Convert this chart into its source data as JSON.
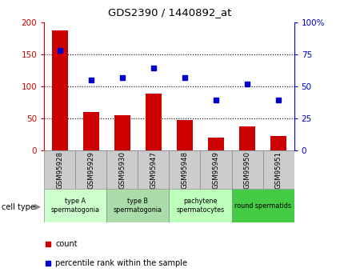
{
  "title": "GDS2390 / 1440892_at",
  "samples": [
    "GSM95928",
    "GSM95929",
    "GSM95930",
    "GSM95947",
    "GSM95948",
    "GSM95949",
    "GSM95950",
    "GSM95951"
  ],
  "counts": [
    187,
    60,
    55,
    89,
    48,
    20,
    37,
    23
  ],
  "percentiles": [
    78,
    55,
    57,
    64,
    57,
    39,
    52,
    39
  ],
  "ylim_left": [
    0,
    200
  ],
  "ylim_right": [
    0,
    100
  ],
  "yticks_left": [
    0,
    50,
    100,
    150,
    200
  ],
  "yticks_right": [
    0,
    25,
    50,
    75,
    100
  ],
  "ytick_labels_right": [
    "0",
    "25",
    "50",
    "75",
    "100%"
  ],
  "cell_groups": [
    {
      "label": "type A\nspermatogonia",
      "start": 0,
      "end": 2,
      "color": "#ccffcc"
    },
    {
      "label": "type B\nspermatogonia",
      "start": 2,
      "end": 4,
      "color": "#aaddaa"
    },
    {
      "label": "pachytene\nspermatocytes",
      "start": 4,
      "end": 6,
      "color": "#bbffbb"
    },
    {
      "label": "round spermatids",
      "start": 6,
      "end": 8,
      "color": "#44cc44"
    }
  ],
  "bar_color": "#cc0000",
  "dot_color": "#0000cc",
  "grid_color": "#000000",
  "bg_color": "#ffffff",
  "sample_bg_color": "#cccccc",
  "bar_width": 0.5,
  "left_axis_color": "#cc0000",
  "right_axis_color": "#0000cc"
}
